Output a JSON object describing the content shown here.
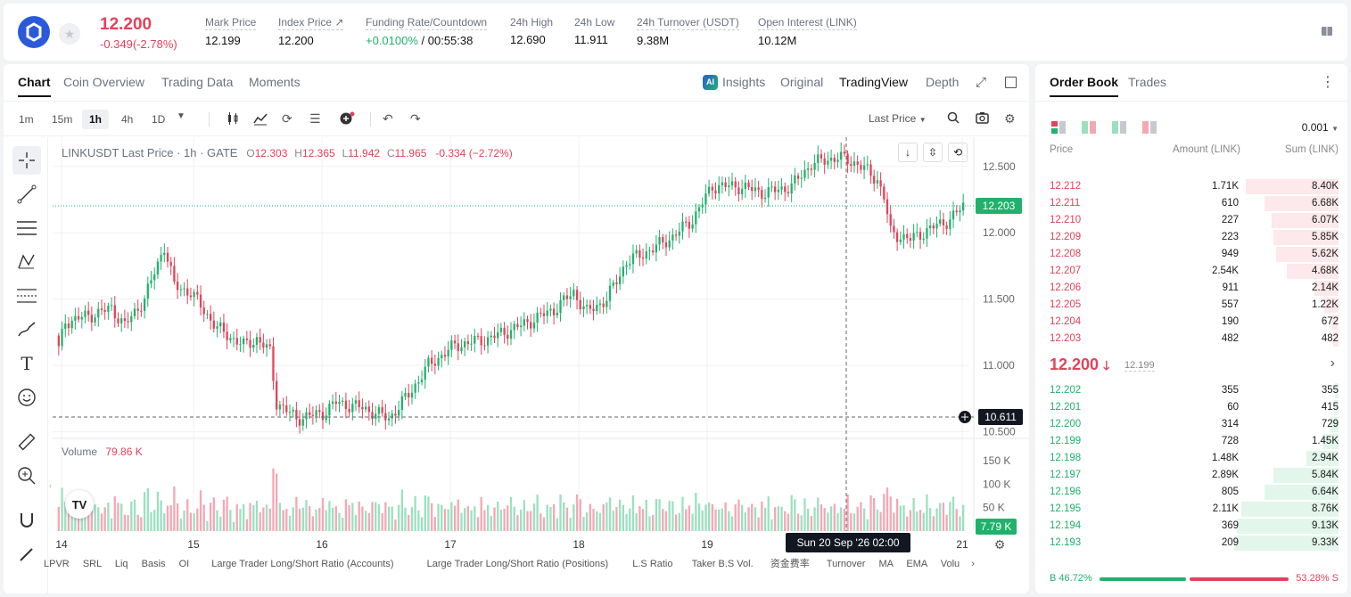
{
  "header": {
    "price": "12.200",
    "change": "-0.349(-2.78%)",
    "stats": [
      {
        "label": "Mark Price",
        "value": "12.199"
      },
      {
        "label": "Index Price ↗",
        "value": "12.200"
      },
      {
        "label": "Funding Rate/Countdown",
        "value_rate": "+0.0100%",
        "value": " / 00:55:38"
      },
      {
        "label": "24h High",
        "value": "12.690"
      },
      {
        "label": "24h Low",
        "value": "11.911"
      },
      {
        "label": "24h Turnover (USDT)",
        "value": "9.38M"
      },
      {
        "label": "Open Interest (LINK)",
        "value": "10.12M"
      }
    ]
  },
  "chart_tabs": [
    "Chart",
    "Coin Overview",
    "Trading Data",
    "Moments"
  ],
  "view_tabs": [
    "Insights",
    "Original",
    "TradingView",
    "Depth"
  ],
  "timeframes": [
    "1m",
    "15m",
    "1h",
    "4h",
    "1D"
  ],
  "price_type": "Last Price",
  "legend": {
    "symbol": "LINKUSDT Last Price · 1h · GATE",
    "o": "12.303",
    "h": "12.365",
    "l": "11.942",
    "c": "11.965",
    "chg": "-0.334 (−2.72%)"
  },
  "volume_legend": {
    "label": "Volume",
    "value": "79.86 K"
  },
  "price_axis": [
    "12.500",
    "12.000",
    "11.500",
    "11.000",
    "10.500"
  ],
  "volume_axis": [
    "150 K",
    "100 K",
    "50 K"
  ],
  "date_axis": [
    "14",
    "15",
    "16",
    "17",
    "18",
    "19",
    "21"
  ],
  "crosshair_date": "Sun 20 Sep '26   02:00",
  "last_price_tag": "12.203",
  "crosshair_price_tag": "10.611",
  "volume_tag": "7.79 K",
  "bottom_indicators": [
    "LPVR",
    "SRL",
    "Liq",
    "Basis",
    "OI",
    "Large Trader Long/Short Ratio (Accounts)",
    "Large Trader Long/Short Ratio (Positions)",
    "L.S Ratio",
    "Taker B.S Vol.",
    "资金费率",
    "Turnover",
    "MA",
    "EMA",
    "Volu"
  ],
  "orderbook": {
    "tabs": [
      "Order Book",
      "Trades"
    ],
    "precision": "0.001",
    "headers": [
      "Price",
      "Amount (LINK)",
      "Sum (LINK)"
    ],
    "asks": [
      {
        "p": "12.212",
        "a": "1.71K",
        "s": "8.40K",
        "d": 0.4
      },
      {
        "p": "12.211",
        "a": "610",
        "s": "6.68K",
        "d": 0.32
      },
      {
        "p": "12.210",
        "a": "227",
        "s": "6.07K",
        "d": 0.29
      },
      {
        "p": "12.209",
        "a": "223",
        "s": "5.85K",
        "d": 0.28
      },
      {
        "p": "12.208",
        "a": "949",
        "s": "5.62K",
        "d": 0.27
      },
      {
        "p": "12.207",
        "a": "2.54K",
        "s": "4.68K",
        "d": 0.225
      },
      {
        "p": "12.206",
        "a": "911",
        "s": "2.14K",
        "d": 0.103
      },
      {
        "p": "12.205",
        "a": "557",
        "s": "1.22K",
        "d": 0.06
      },
      {
        "p": "12.204",
        "a": "190",
        "s": "672",
        "d": 0.032
      },
      {
        "p": "12.203",
        "a": "482",
        "s": "482",
        "d": 0.024
      }
    ],
    "mid_price": "12.200",
    "mid_mark": "12.199",
    "bids": [
      {
        "p": "12.202",
        "a": "355",
        "s": "355",
        "d": 0.017
      },
      {
        "p": "12.201",
        "a": "60",
        "s": "415",
        "d": 0.02
      },
      {
        "p": "12.200",
        "a": "314",
        "s": "729",
        "d": 0.035
      },
      {
        "p": "12.199",
        "a": "728",
        "s": "1.45K",
        "d": 0.07
      },
      {
        "p": "12.198",
        "a": "1.48K",
        "s": "2.94K",
        "d": 0.14
      },
      {
        "p": "12.197",
        "a": "2.89K",
        "s": "5.84K",
        "d": 0.28
      },
      {
        "p": "12.196",
        "a": "805",
        "s": "6.64K",
        "d": 0.32
      },
      {
        "p": "12.195",
        "a": "2.11K",
        "s": "8.76K",
        "d": 0.42
      },
      {
        "p": "12.194",
        "a": "369",
        "s": "9.13K",
        "d": 0.44
      },
      {
        "p": "12.193",
        "a": "209",
        "s": "9.33K",
        "d": 0.45
      }
    ],
    "buy_ratio": "B 46.72%",
    "sell_ratio": "53.28% S",
    "buy_fraction": 0.4672
  },
  "colors": {
    "up": "#20b26c",
    "down": "#e5415a",
    "accent": "#2a5ada"
  },
  "chart_data": {
    "type": "candlestick",
    "title": "LINKUSDT Last Price · 1h · GATE",
    "ylim": [
      10.45,
      12.72
    ],
    "x_ticks": [
      "14",
      "15",
      "16",
      "17",
      "18",
      "19",
      "21"
    ],
    "anchors": [
      [
        0,
        11.12
      ],
      [
        2,
        11.33
      ],
      [
        10,
        11.38
      ],
      [
        16,
        11.43
      ],
      [
        20,
        11.3
      ],
      [
        26,
        11.5
      ],
      [
        32,
        11.9
      ],
      [
        35,
        11.6
      ],
      [
        40,
        11.55
      ],
      [
        48,
        11.28
      ],
      [
        56,
        11.15
      ],
      [
        60,
        11.2
      ],
      [
        64,
        11.1
      ],
      [
        66,
        10.72
      ],
      [
        72,
        10.6
      ],
      [
        80,
        10.64
      ],
      [
        84,
        10.72
      ],
      [
        92,
        10.68
      ],
      [
        100,
        10.6
      ],
      [
        106,
        10.78
      ],
      [
        112,
        11.0
      ],
      [
        120,
        11.15
      ],
      [
        130,
        11.2
      ],
      [
        140,
        11.3
      ],
      [
        150,
        11.42
      ],
      [
        156,
        11.55
      ],
      [
        160,
        11.4
      ],
      [
        166,
        11.5
      ],
      [
        172,
        11.78
      ],
      [
        180,
        11.88
      ],
      [
        186,
        11.97
      ],
      [
        192,
        12.1
      ],
      [
        198,
        12.35
      ],
      [
        206,
        12.35
      ],
      [
        214,
        12.3
      ],
      [
        222,
        12.35
      ],
      [
        228,
        12.52
      ],
      [
        236,
        12.57
      ],
      [
        242,
        12.52
      ],
      [
        248,
        12.4
      ],
      [
        250,
        12.27
      ],
      [
        252,
        12.0
      ],
      [
        258,
        11.95
      ],
      [
        264,
        12.03
      ],
      [
        270,
        12.1
      ],
      [
        274,
        12.2
      ]
    ],
    "volume_ylim": [
      0,
      175
    ]
  }
}
